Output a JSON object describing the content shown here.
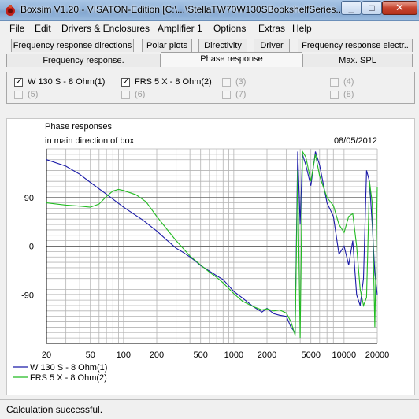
{
  "window": {
    "title": "Boxsim V1.20 - VISATON-Edition [C:\\...\\StellaTW70W130SBookshelfSeries...",
    "minimize": "_",
    "maximize": "□",
    "close": "✕"
  },
  "menu": [
    "File",
    "Edit",
    "Drivers & Enclosures",
    "Amplifier 1",
    "Options",
    "Extras",
    "Help"
  ],
  "tabs": {
    "row1": [
      "Frequency response directions",
      "Polar plots",
      "Directivity",
      "Driver",
      "Frequency response electr.."
    ],
    "row2": [
      "Frequency response.",
      "Phase response",
      "Max. SPL"
    ],
    "active": "Phase response"
  },
  "drivers": [
    {
      "label": "W 130 S - 8 Ohm(1)",
      "checked": true,
      "enabled": true
    },
    {
      "label": "FRS 5 X - 8 Ohm(2)",
      "checked": true,
      "enabled": true
    },
    {
      "label": "(3)",
      "checked": false,
      "enabled": false
    },
    {
      "label": "(4)",
      "checked": false,
      "enabled": false
    },
    {
      "label": "(5)",
      "checked": false,
      "enabled": false
    },
    {
      "label": "(6)",
      "checked": false,
      "enabled": false
    },
    {
      "label": "(7)",
      "checked": false,
      "enabled": false
    },
    {
      "label": "(8)",
      "checked": false,
      "enabled": false
    }
  ],
  "status": {
    "text": "Calculation successful."
  },
  "chart_data": {
    "type": "line",
    "title": "Phase responses",
    "subtitle": "in main direction of box",
    "date": "08/05/2012",
    "x_scale": "log",
    "xlim": [
      20,
      20000
    ],
    "ylim": [
      -180,
      180
    ],
    "x_ticks": [
      20,
      50,
      100,
      200,
      500,
      1000,
      2000,
      5000,
      10000,
      20000
    ],
    "y_ticks": [
      90,
      0,
      -90
    ],
    "grid": true,
    "legend_position": "bottom-left",
    "colors": {
      "series1": "#1a1aa8",
      "series2": "#22bb22"
    },
    "series": [
      {
        "name": "W 130 S - 8 Ohm(1)",
        "points": [
          [
            20,
            160
          ],
          [
            30,
            148
          ],
          [
            40,
            133
          ],
          [
            50,
            118
          ],
          [
            70,
            96
          ],
          [
            100,
            72
          ],
          [
            150,
            48
          ],
          [
            200,
            28
          ],
          [
            250,
            10
          ],
          [
            300,
            -4
          ],
          [
            350,
            -12
          ],
          [
            400,
            -20
          ],
          [
            450,
            -28
          ],
          [
            500,
            -36
          ],
          [
            600,
            -46
          ],
          [
            700,
            -55
          ],
          [
            800,
            -62
          ],
          [
            1000,
            -84
          ],
          [
            1200,
            -96
          ],
          [
            1500,
            -112
          ],
          [
            1800,
            -122
          ],
          [
            2000,
            -115
          ],
          [
            2300,
            -125
          ],
          [
            2600,
            -128
          ],
          [
            3000,
            -130
          ],
          [
            3300,
            -150
          ],
          [
            3600,
            -160
          ],
          [
            3800,
            175
          ],
          [
            4000,
            40
          ],
          [
            4200,
            170
          ],
          [
            4500,
            150
          ],
          [
            5000,
            112
          ],
          [
            5500,
            175
          ],
          [
            6000,
            150
          ],
          [
            7000,
            80
          ],
          [
            8000,
            55
          ],
          [
            9000,
            -15
          ],
          [
            10000,
            0
          ],
          [
            11000,
            -35
          ],
          [
            12000,
            10
          ],
          [
            13000,
            -90
          ],
          [
            14000,
            -110
          ],
          [
            15000,
            -60
          ],
          [
            16000,
            140
          ],
          [
            17000,
            120
          ],
          [
            18000,
            40
          ],
          [
            19000,
            -50
          ],
          [
            20000,
            -90
          ]
        ]
      },
      {
        "name": "FRS 5 X - 8 Ohm(2)",
        "points": [
          [
            20,
            80
          ],
          [
            30,
            76
          ],
          [
            40,
            74
          ],
          [
            50,
            72
          ],
          [
            60,
            78
          ],
          [
            70,
            92
          ],
          [
            80,
            102
          ],
          [
            90,
            105
          ],
          [
            100,
            103
          ],
          [
            130,
            95
          ],
          [
            160,
            82
          ],
          [
            200,
            55
          ],
          [
            250,
            30
          ],
          [
            300,
            10
          ],
          [
            400,
            -18
          ],
          [
            500,
            -35
          ],
          [
            600,
            -48
          ],
          [
            700,
            -58
          ],
          [
            800,
            -68
          ],
          [
            1000,
            -88
          ],
          [
            1200,
            -102
          ],
          [
            1500,
            -112
          ],
          [
            1800,
            -118
          ],
          [
            2000,
            -116
          ],
          [
            2300,
            -120
          ],
          [
            2600,
            -118
          ],
          [
            3000,
            -124
          ],
          [
            3300,
            -140
          ],
          [
            3600,
            -165
          ],
          [
            3800,
            140
          ],
          [
            4000,
            -170
          ],
          [
            4200,
            175
          ],
          [
            4500,
            165
          ],
          [
            5000,
            120
          ],
          [
            5500,
            170
          ],
          [
            6000,
            130
          ],
          [
            7000,
            90
          ],
          [
            8000,
            75
          ],
          [
            9000,
            40
          ],
          [
            10000,
            25
          ],
          [
            11000,
            55
          ],
          [
            12000,
            60
          ],
          [
            13000,
            0
          ],
          [
            14000,
            -80
          ],
          [
            15000,
            -110
          ],
          [
            16000,
            -95
          ],
          [
            17000,
            120
          ],
          [
            18000,
            80
          ],
          [
            19000,
            -150
          ],
          [
            20000,
            110
          ]
        ]
      }
    ]
  }
}
